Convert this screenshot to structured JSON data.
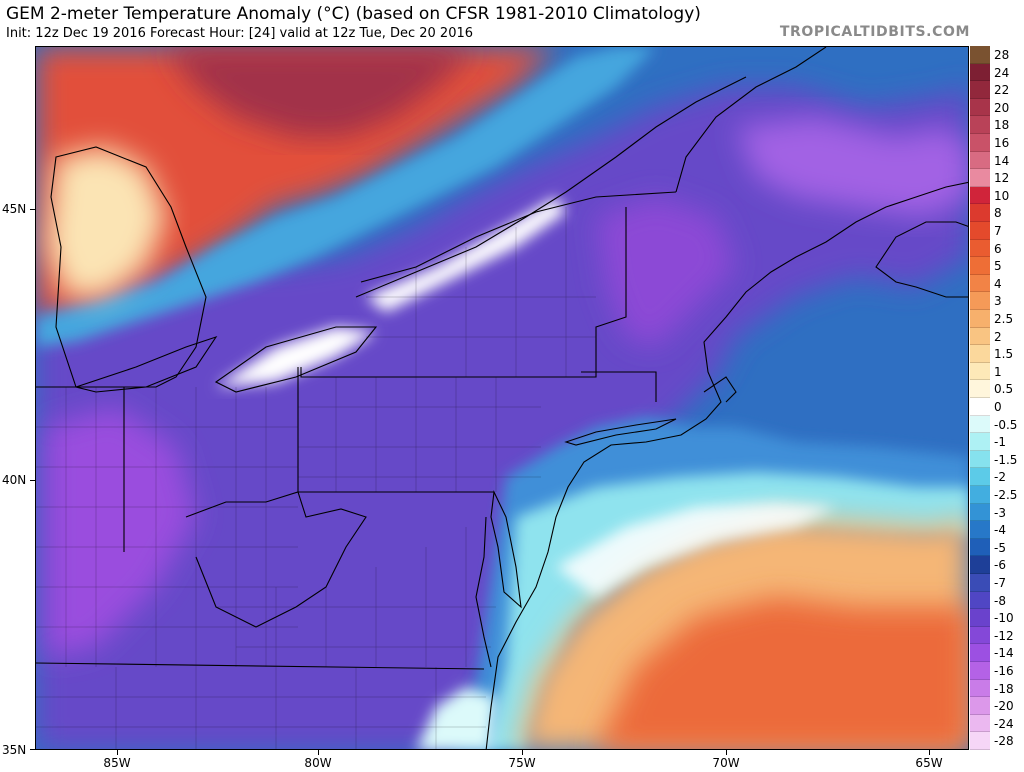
{
  "header": {
    "title": "GEM 2-meter Temperature Anomaly (°C) (based on CFSR 1981-2010 Climatology)",
    "subtitle": "Init: 12z Dec 19 2016   Forecast Hour: [24]   valid at 12z Tue, Dec 20 2016",
    "brand": "TROPICALTIDBITS.COM"
  },
  "map": {
    "lat_labels": [
      "45N",
      "40N",
      "35N"
    ],
    "lon_labels": [
      "85W",
      "80W",
      "75W",
      "70W",
      "65W"
    ]
  },
  "colorbar": {
    "levels": [
      {
        "label": "28",
        "color": "#7a5230"
      },
      {
        "label": "24",
        "color": "#7d1f33"
      },
      {
        "label": "22",
        "color": "#92283c"
      },
      {
        "label": "20",
        "color": "#a8344a"
      },
      {
        "label": "18",
        "color": "#b94258"
      },
      {
        "label": "16",
        "color": "#c95268"
      },
      {
        "label": "14",
        "color": "#d86b82"
      },
      {
        "label": "12",
        "color": "#e98aa0"
      },
      {
        "label": "10",
        "color": "#d0243a"
      },
      {
        "label": "8",
        "color": "#dc3a2e"
      },
      {
        "label": "7",
        "color": "#e44a2c"
      },
      {
        "label": "6",
        "color": "#ea5c30"
      },
      {
        "label": "5",
        "color": "#ee6e36"
      },
      {
        "label": "4",
        "color": "#f28346"
      },
      {
        "label": "3",
        "color": "#f59a58"
      },
      {
        "label": "2.5",
        "color": "#f7b06c"
      },
      {
        "label": "2",
        "color": "#f9c482"
      },
      {
        "label": "1.5",
        "color": "#fbd89c"
      },
      {
        "label": "1",
        "color": "#fde9b8"
      },
      {
        "label": "0.5",
        "color": "#fff6dc"
      },
      {
        "label": "0",
        "color": "#ffffff"
      },
      {
        "label": "-0.5",
        "color": "#dcfafa"
      },
      {
        "label": "-1",
        "color": "#aef1f4"
      },
      {
        "label": "-1.5",
        "color": "#86e2ee"
      },
      {
        "label": "-2",
        "color": "#5ccbe8"
      },
      {
        "label": "-2.5",
        "color": "#42aee0"
      },
      {
        "label": "-3",
        "color": "#3393d6"
      },
      {
        "label": "-4",
        "color": "#2778c8"
      },
      {
        "label": "-5",
        "color": "#1f5fb8"
      },
      {
        "label": "-6",
        "color": "#1e3f98"
      },
      {
        "label": "-7",
        "color": "#3a4cb6"
      },
      {
        "label": "-8",
        "color": "#5046c4"
      },
      {
        "label": "-10",
        "color": "#6a42cc"
      },
      {
        "label": "-12",
        "color": "#8448d8"
      },
      {
        "label": "-14",
        "color": "#9c50e2"
      },
      {
        "label": "-16",
        "color": "#b462e6"
      },
      {
        "label": "-18",
        "color": "#c97ce8"
      },
      {
        "label": "-20",
        "color": "#dc98ea"
      },
      {
        "label": "-24",
        "color": "#ebb8f0"
      },
      {
        "label": "-28",
        "color": "#f6d6f7"
      }
    ]
  }
}
